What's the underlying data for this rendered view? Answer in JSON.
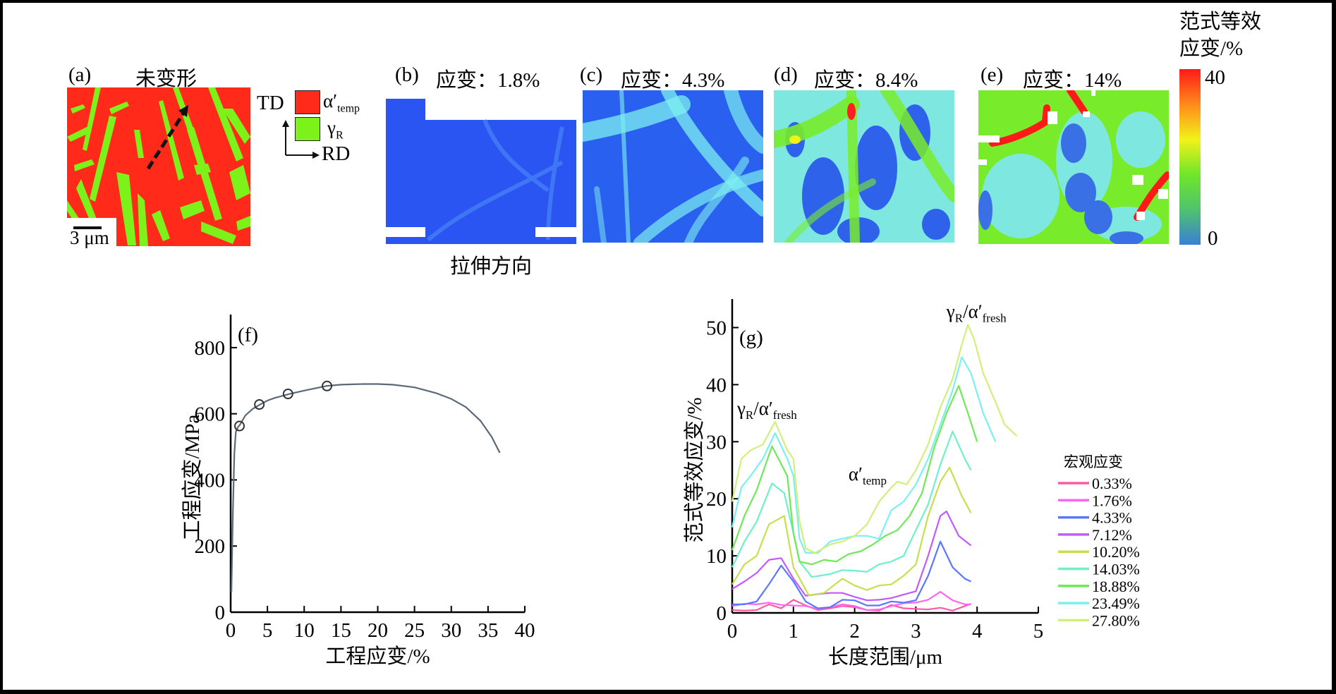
{
  "panels": {
    "a": {
      "tag": "(a)",
      "title": "未变形",
      "scale_bar": "3 μm",
      "legend": {
        "td": "TD",
        "rd": "RD",
        "items": [
          {
            "symbol": "α′",
            "sub": "temp",
            "color": "#ff2a1a"
          },
          {
            "symbol": "γ",
            "sub": "R",
            "color": "#7cf21a"
          }
        ]
      }
    },
    "b": {
      "tag": "(b)",
      "title": "应变：1.8%",
      "direction_label": "拉伸方向"
    },
    "c": {
      "tag": "(c)",
      "title": "应变：4.3%"
    },
    "d": {
      "tag": "(d)",
      "title": "应变：8.4%"
    },
    "e": {
      "tag": "(e)",
      "title": "应变：14%"
    }
  },
  "colorbar": {
    "title_line1": "范式等效",
    "title_line2": "应变/%",
    "max": "40",
    "min": "0",
    "stops": [
      "#3a7fd6",
      "#4fc36e",
      "#6fe62a",
      "#f2f21a",
      "#ff8a1a",
      "#ff1a1a"
    ]
  },
  "chart_data": [
    {
      "type": "line",
      "panel_tag": "(f)",
      "xlabel": "工程应变/%",
      "ylabel": "工程应变/MPa",
      "xlim": [
        0,
        40
      ],
      "ylim": [
        0,
        900
      ],
      "xticks": [
        0,
        5,
        10,
        15,
        20,
        25,
        30,
        35,
        40
      ],
      "yticks": [
        0,
        200,
        400,
        600,
        800
      ],
      "color": "#5a6a78",
      "series": [
        {
          "name": "stress-strain",
          "x": [
            0.1,
            0.3,
            0.5,
            0.7,
            1.0,
            1.3,
            2,
            3,
            4,
            5,
            6,
            8,
            10,
            13,
            15,
            18,
            20,
            22,
            25,
            28,
            30,
            32,
            34,
            35.5,
            36.6
          ],
          "y": [
            60,
            300,
            480,
            545,
            560,
            568,
            595,
            615,
            628,
            640,
            648,
            660,
            670,
            684,
            688,
            690,
            690,
            688,
            680,
            662,
            645,
            620,
            578,
            530,
            482
          ]
        }
      ],
      "markers": {
        "x": [
          1.2,
          3.9,
          7.8,
          13.1
        ],
        "y": [
          563,
          628,
          660,
          684
        ]
      }
    },
    {
      "type": "line",
      "panel_tag": "(g)",
      "xlabel": "长度范围/μm",
      "ylabel": "范式等效应变/%",
      "xlim": [
        0,
        5
      ],
      "ylim": [
        0,
        55
      ],
      "xticks": [
        0,
        1,
        2,
        3,
        4,
        5
      ],
      "yticks": [
        0,
        10,
        20,
        30,
        40,
        50
      ],
      "legend_title": "宏观应变",
      "legend_position": "bottom-right",
      "annotations": [
        {
          "text": "γ",
          "sub1": "R",
          "mid": "/α′",
          "sub2": "fresh",
          "x": 0.08,
          "y": 33.5
        },
        {
          "text": "α′",
          "sub1": "temp",
          "mid": "",
          "sub2": "",
          "x": 1.9,
          "y": 22
        },
        {
          "text": "γ",
          "sub1": "R",
          "mid": "/α′",
          "sub2": "fresh",
          "x": 3.5,
          "y": 50.5
        }
      ],
      "series": [
        {
          "name": "0.33%",
          "color": "#ff5aa8",
          "x": [
            0,
            0.2,
            0.4,
            0.6,
            0.8,
            1.0,
            1.2,
            1.4,
            1.6,
            1.8,
            2.0,
            2.2,
            2.4,
            2.6,
            2.8,
            3.0,
            3.2,
            3.4,
            3.6,
            3.8,
            3.9
          ],
          "y": [
            0.5,
            0.4,
            0.5,
            1.5,
            0.8,
            2.3,
            1.3,
            0.5,
            0.8,
            1.2,
            1.0,
            0.5,
            0.4,
            1.4,
            0.8,
            0.7,
            0.6,
            0.9,
            0.4,
            1.2,
            1.6
          ]
        },
        {
          "name": "1.76%",
          "color": "#ff66f0",
          "x": [
            0,
            0.2,
            0.4,
            0.6,
            0.8,
            1.0,
            1.2,
            1.4,
            1.6,
            1.8,
            2.0,
            2.2,
            2.4,
            2.6,
            2.8,
            3.0,
            3.2,
            3.4,
            3.6,
            3.8,
            3.9
          ],
          "y": [
            1.2,
            1.6,
            1.5,
            1.8,
            1.4,
            1.3,
            1.2,
            0.7,
            1.0,
            1.5,
            1.2,
            0.5,
            0.6,
            1.2,
            1.7,
            1.8,
            2.3,
            3.7,
            2.2,
            1.5,
            1.5
          ]
        },
        {
          "name": "4.33%",
          "color": "#5a78ff",
          "x": [
            0,
            0.2,
            0.4,
            0.6,
            0.8,
            1.0,
            1.2,
            1.4,
            1.6,
            1.8,
            2.0,
            2.2,
            2.4,
            2.6,
            2.8,
            3.0,
            3.2,
            3.4,
            3.6,
            3.8,
            3.9
          ],
          "y": [
            1.5,
            1.5,
            2.0,
            5.0,
            8.3,
            5.5,
            2.0,
            0.8,
            1.0,
            2.3,
            2.2,
            1.3,
            1.3,
            2.0,
            1.8,
            2.2,
            6.5,
            12.5,
            8.0,
            6.0,
            5.5
          ]
        },
        {
          "name": "7.12%",
          "color": "#c35aff",
          "x": [
            0,
            0.2,
            0.4,
            0.6,
            0.8,
            1.0,
            1.2,
            1.4,
            1.6,
            1.8,
            2.0,
            2.2,
            2.4,
            2.6,
            2.8,
            3.0,
            3.2,
            3.4,
            3.5,
            3.7,
            3.9
          ],
          "y": [
            4.2,
            5.5,
            7.0,
            9.3,
            9.6,
            6.0,
            3.0,
            3.3,
            3.5,
            3.5,
            2.8,
            2.2,
            2.3,
            2.6,
            3.2,
            3.8,
            10.0,
            17.0,
            17.8,
            13.5,
            11.8
          ]
        },
        {
          "name": "10.20%",
          "color": "#c4e050",
          "x": [
            0,
            0.2,
            0.4,
            0.6,
            0.85,
            1.0,
            1.25,
            1.5,
            1.8,
            2.0,
            2.2,
            2.4,
            2.6,
            2.8,
            3.0,
            3.2,
            3.4,
            3.55,
            3.75,
            3.9
          ],
          "y": [
            5.0,
            8.5,
            10.0,
            15.5,
            17.0,
            8.0,
            3.1,
            3.5,
            6.0,
            4.8,
            4.0,
            4.8,
            5.0,
            6.5,
            8.5,
            17.0,
            23.0,
            25.5,
            20.5,
            17.5
          ]
        },
        {
          "name": "14.03%",
          "color": "#6ff0c8",
          "x": [
            0,
            0.2,
            0.4,
            0.65,
            0.85,
            1.0,
            1.1,
            1.3,
            1.6,
            1.8,
            2.0,
            2.2,
            2.4,
            2.6,
            2.8,
            3.0,
            3.2,
            3.4,
            3.6,
            3.8,
            3.9
          ],
          "y": [
            8.0,
            12.5,
            16.0,
            22.7,
            21.0,
            14.0,
            9.0,
            6.3,
            6.8,
            7.5,
            7.4,
            7.2,
            8.5,
            9.0,
            10.0,
            14.5,
            19.0,
            26.0,
            31.8,
            27.0,
            25.0
          ]
        },
        {
          "name": "18.88%",
          "color": "#6fe85a",
          "x": [
            0,
            0.2,
            0.4,
            0.65,
            0.9,
            1.0,
            1.1,
            1.3,
            1.5,
            1.7,
            1.9,
            2.1,
            2.3,
            2.5,
            2.7,
            2.9,
            3.1,
            3.3,
            3.5,
            3.7,
            3.85,
            4.0
          ],
          "y": [
            11.0,
            17.0,
            21.5,
            29.2,
            24.0,
            14.0,
            9.0,
            8.5,
            9.3,
            9.0,
            10.3,
            10.8,
            12.0,
            13.5,
            14.5,
            17.0,
            21.0,
            29.0,
            35.0,
            39.8,
            35.0,
            30.0
          ]
        },
        {
          "name": "23.49%",
          "color": "#7af0f0",
          "x": [
            0,
            0.15,
            0.3,
            0.5,
            0.7,
            0.9,
            1.0,
            1.1,
            1.2,
            1.4,
            1.6,
            1.8,
            2.0,
            2.2,
            2.4,
            2.6,
            2.8,
            3.0,
            3.2,
            3.4,
            3.6,
            3.75,
            3.9,
            4.1,
            4.3
          ],
          "y": [
            15.0,
            22.0,
            24.0,
            27.0,
            31.5,
            27.0,
            24.0,
            13.0,
            10.5,
            10.5,
            12.5,
            13.0,
            13.5,
            13.5,
            13.0,
            18.0,
            19.5,
            22.5,
            27.0,
            33.0,
            39.0,
            44.8,
            42.0,
            35.0,
            30.0
          ]
        },
        {
          "name": "27.80%",
          "color": "#d0f07a",
          "x": [
            0,
            0.15,
            0.3,
            0.5,
            0.7,
            0.9,
            1.0,
            1.1,
            1.2,
            1.35,
            1.6,
            1.8,
            2.0,
            2.2,
            2.4,
            2.6,
            2.7,
            2.85,
            3.0,
            3.2,
            3.4,
            3.6,
            3.75,
            3.85,
            3.95,
            4.1,
            4.3,
            4.45,
            4.65
          ],
          "y": [
            19.5,
            27.0,
            28.5,
            29.5,
            33.5,
            28.5,
            27.0,
            16.0,
            11.3,
            10.5,
            12.0,
            12.5,
            13.5,
            15.5,
            19.5,
            22.0,
            23.0,
            22.5,
            25.0,
            29.5,
            36.0,
            41.0,
            47.0,
            50.5,
            48.0,
            42.0,
            37.0,
            33.0,
            31.0
          ]
        }
      ]
    }
  ]
}
